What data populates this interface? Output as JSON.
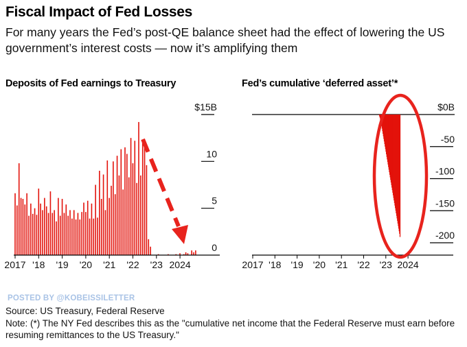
{
  "header": {
    "title": "Fiscal Impact of Fed Losses",
    "subtitle": "For many years the Fed’s post-QE balance sheet had the effect of lowering the US government’s interest costs — now it’s amplifying them"
  },
  "footer": {
    "watermark": "POSTED BY @KOBEISSILETTER",
    "source": "Source: US Treasury, Federal Reserve",
    "note": "Note: (*) The NY Fed describes this as the \"cumulative net income that the Federal Reserve must earn before resuming remittances to the US Treasury.\""
  },
  "colors": {
    "bar": "#e3120b",
    "annotation": "#e8231d",
    "axis": "#000000"
  },
  "chart_data": [
    {
      "type": "bar",
      "title": "Deposits of Fed earnings to Treasury",
      "x_tick_labels": [
        "2017",
        "'18",
        "'19",
        "'20",
        "'21",
        "'22",
        "'23",
        "2024"
      ],
      "y_tick_labels": [
        "$15B",
        "10",
        "5",
        "0"
      ],
      "y_ticks": [
        15,
        10,
        5,
        0
      ],
      "ylim": [
        0,
        15
      ],
      "x_start": 2017.0,
      "x_end": 2024.75,
      "bar_step_years": 0.0833,
      "values": [
        6.6,
        5.3,
        9.8,
        6.1,
        6.0,
        5.4,
        6.6,
        4.2,
        5.5,
        4.4,
        5.0,
        4.3,
        7.1,
        5.5,
        4.8,
        6.1,
        5.2,
        4.5,
        6.8,
        4.5,
        4.8,
        3.6,
        6.1,
        4.2,
        6.0,
        4.5,
        5.4,
        4.2,
        4.8,
        3.9,
        4.8,
        3.8,
        4.5,
        3.8,
        4.6,
        5.6,
        4.6,
        5.8,
        3.9,
        5.5,
        3.9,
        7.5,
        4.0,
        9.0,
        6.0,
        8.6,
        4.8,
        10.1,
        6.1,
        7.4,
        10.0,
        6.5,
        10.6,
        8.5,
        11.3,
        7.0,
        11.5,
        10.8,
        8.3,
        12.5,
        9.8,
        12.2,
        7.7,
        14.2,
        8.5,
        12.1,
        11.8,
        9.6,
        1.7,
        0.9,
        0.0,
        0.0,
        0.0,
        0.1,
        0.0,
        0.0,
        0.0,
        0.0,
        0.1,
        0.0,
        0.0,
        0.0,
        0.1,
        0.0,
        0.2,
        0.0,
        0.1,
        0.3,
        0.2,
        0.0,
        0.5,
        0.3,
        0.5
      ],
      "grid": false,
      "y_axis_side": "right",
      "annotation": "dashed red arrow pointing down from the 2022 peak to 2024"
    },
    {
      "type": "bar",
      "title": "Fed’s cumulative ‘deferred asset’*",
      "x_tick_labels": [
        "2017",
        "'18",
        "'19",
        "'20",
        "'21",
        "'22",
        "'23",
        "2024"
      ],
      "y_tick_labels": [
        "$0B",
        "-50",
        "-100",
        "-150",
        "-200"
      ],
      "y_ticks": [
        0,
        -50,
        -100,
        -150,
        -200
      ],
      "ylim": [
        -200,
        0
      ],
      "x_start": 2022.7,
      "bar_step_years": 0.0192,
      "values": [
        -1,
        -3,
        -5,
        -8,
        -11,
        -14,
        -18,
        -22,
        -26,
        -30,
        -34,
        -38,
        -42,
        -46,
        -50,
        -54,
        -58,
        -62,
        -66,
        -70,
        -74,
        -78,
        -82,
        -86,
        -90,
        -94,
        -98,
        -102,
        -106,
        -110,
        -114,
        -118,
        -122,
        -126,
        -130,
        -134,
        -138,
        -142,
        -146,
        -150,
        -154,
        -158,
        -162,
        -166,
        -170,
        -174,
        -178,
        -182,
        -186,
        -191
      ],
      "grid": false,
      "y_axis_side": "right",
      "annotation": "red ellipse circling the deferred asset bars"
    }
  ]
}
